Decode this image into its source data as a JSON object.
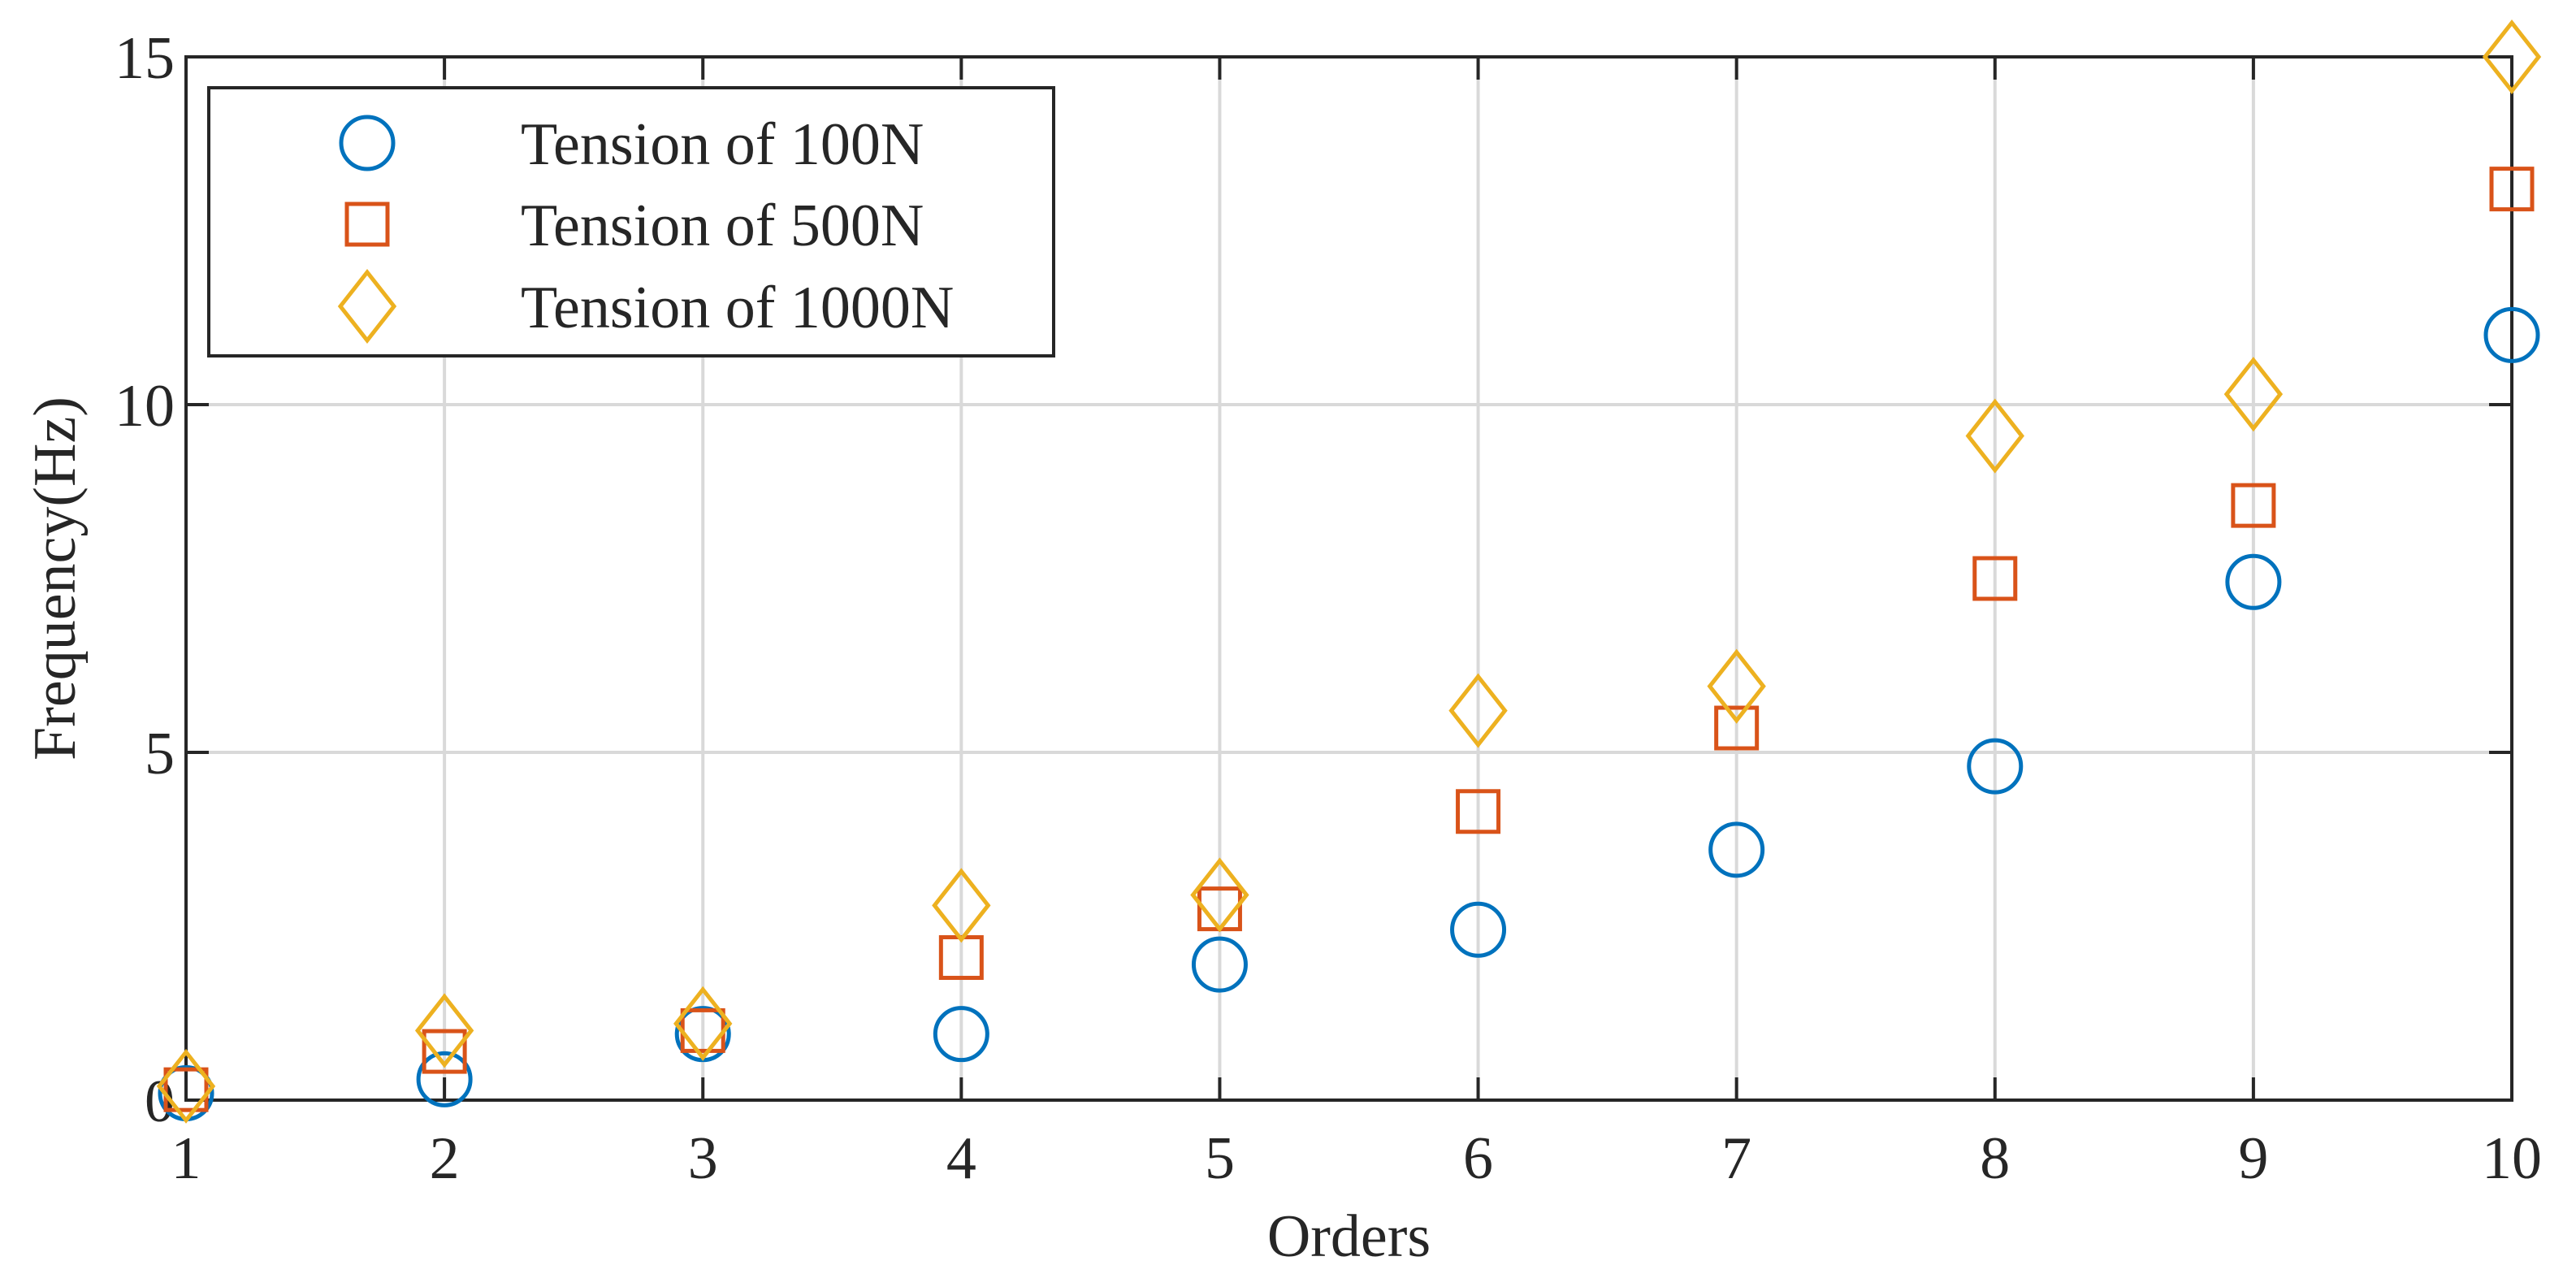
{
  "chart_data": {
    "type": "scatter",
    "title": "",
    "xlabel": "Orders",
    "ylabel": "Frequency(Hz)",
    "xlim": [
      1,
      10
    ],
    "ylim": [
      0,
      15
    ],
    "xticks": [
      1,
      2,
      3,
      4,
      5,
      6,
      7,
      8,
      9,
      10
    ],
    "yticks": [
      0,
      5,
      10,
      15
    ],
    "xtick_labels": [
      "1",
      "2",
      "3",
      "4",
      "5",
      "6",
      "7",
      "8",
      "9",
      "10"
    ],
    "ytick_labels": [
      "0",
      "5",
      "10",
      "15"
    ],
    "grid": true,
    "legend_position": "top-left",
    "x": [
      1,
      2,
      3,
      4,
      5,
      6,
      7,
      8,
      9,
      10
    ],
    "series": [
      {
        "name": "Tension of 100N",
        "marker": "circle",
        "color": "#0072BD",
        "values": [
          0.1,
          0.3,
          0.95,
          0.95,
          1.95,
          2.45,
          3.6,
          4.8,
          7.45,
          11.0
        ]
      },
      {
        "name": "Tension of 500N",
        "marker": "square",
        "color": "#D95319",
        "values": [
          0.15,
          0.7,
          1.0,
          2.05,
          2.75,
          4.15,
          5.35,
          7.5,
          8.55,
          13.1
        ]
      },
      {
        "name": "Tension of 1000N",
        "marker": "diamond",
        "color": "#EDB120",
        "values": [
          0.2,
          1.0,
          1.1,
          2.8,
          2.95,
          5.6,
          5.95,
          9.55,
          10.15,
          15.0
        ]
      }
    ]
  }
}
